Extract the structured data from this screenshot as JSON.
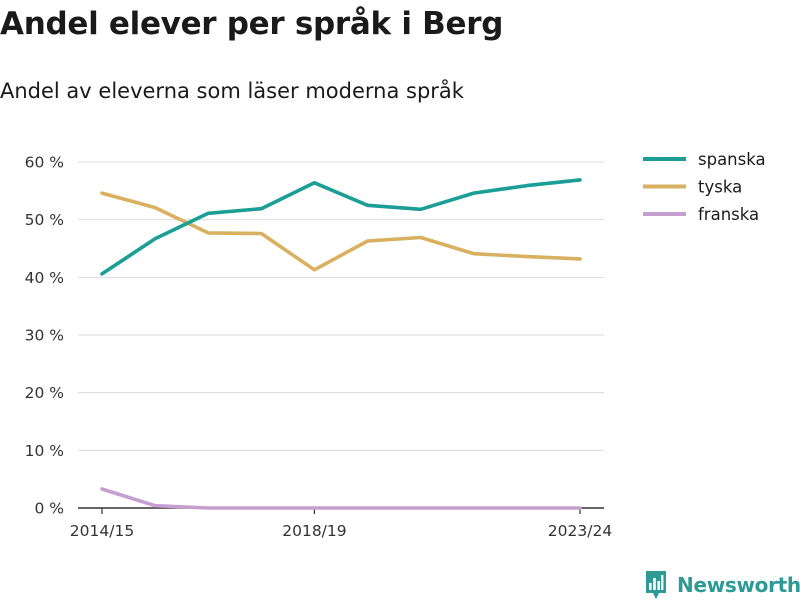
{
  "title": "Andel elever per språk i Berg",
  "subtitle": "Andel av eleverna som läser moderna språk",
  "brand": {
    "name": "Newsworthy",
    "icon": "newsworthy-logo-icon",
    "color": "#2e9a95"
  },
  "chart_data": {
    "type": "line",
    "x": [
      "2014/15",
      "2015/16",
      "2016/17",
      "2017/18",
      "2018/19",
      "2019/20",
      "2020/21",
      "2021/22",
      "2022/23",
      "2023/24"
    ],
    "xticks": [
      "2014/15",
      "2018/19",
      "2023/24"
    ],
    "yticks": [
      "0 %",
      "10 %",
      "20 %",
      "30 %",
      "40 %",
      "50 %",
      "60 %"
    ],
    "ylim": [
      0,
      60
    ],
    "grid": true,
    "legend_position": "right",
    "series": [
      {
        "name": "spanska",
        "color": "#1a9e96",
        "values": [
          40.6,
          46.7,
          51.1,
          51.9,
          56.4,
          52.5,
          51.8,
          54.6,
          55.9,
          56.9
        ]
      },
      {
        "name": "tyska",
        "color": "#d9b060",
        "values": [
          54.6,
          52.1,
          47.7,
          47.6,
          41.3,
          46.3,
          46.9,
          44.1,
          43.6,
          43.2
        ]
      },
      {
        "name": "franska",
        "color": "#c59fd0",
        "values": [
          3.3,
          0.4,
          0,
          0,
          0,
          0,
          0,
          0,
          0,
          0
        ]
      }
    ]
  }
}
